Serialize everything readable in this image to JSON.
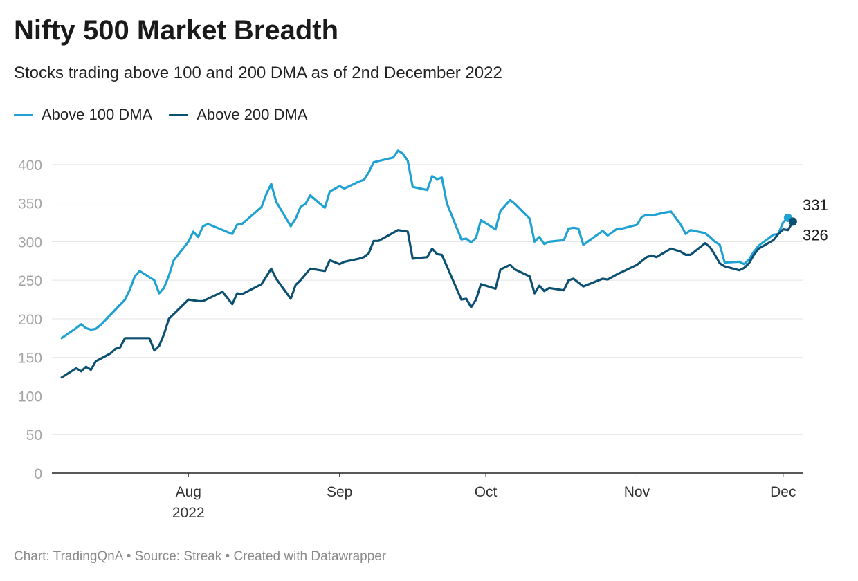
{
  "title": "Nifty 500 Market Breadth",
  "subtitle": "Stocks trading above 100 and 200 DMA as of 2nd December 2022",
  "footer": "Chart: TradingQnA • Source: Streak • Created with Datawrapper",
  "colors": {
    "above_100": "#1fa1d1",
    "above_200": "#0b4f71",
    "grid": "#e3e3e3",
    "axis": "#222222",
    "tick_text": "#a5a5a5"
  },
  "chart_data": {
    "type": "line",
    "title": "Nifty 500 Market Breadth",
    "subtitle": "Stocks trading above 100 and 200 DMA as of 2nd December 2022",
    "xlabel": "",
    "ylabel": "",
    "ylim": [
      0,
      425
    ],
    "yticks": [
      0,
      50,
      100,
      150,
      200,
      250,
      300,
      350,
      400
    ],
    "xlim": [
      "2022-07-04",
      "2022-12-05"
    ],
    "xticks": [
      {
        "date": "2022-08-01",
        "label": "Aug",
        "sublabel": "2022"
      },
      {
        "date": "2022-09-01",
        "label": "Sep",
        "sublabel": ""
      },
      {
        "date": "2022-10-01",
        "label": "Oct",
        "sublabel": ""
      },
      {
        "date": "2022-11-01",
        "label": "Nov",
        "sublabel": ""
      },
      {
        "date": "2022-12-01",
        "label": "Dec",
        "sublabel": ""
      }
    ],
    "grid": true,
    "legend_position": "top-left",
    "series": [
      {
        "name": "Above 100 DMA",
        "color": "#1fa1d1",
        "end_label": "331",
        "points": [
          [
            "2022-07-06",
            175
          ],
          [
            "2022-07-09",
            188
          ],
          [
            "2022-07-10",
            193
          ],
          [
            "2022-07-11",
            188
          ],
          [
            "2022-07-12",
            186
          ],
          [
            "2022-07-13",
            187
          ],
          [
            "2022-07-14",
            192
          ],
          [
            "2022-07-19",
            225
          ],
          [
            "2022-07-20",
            238
          ],
          [
            "2022-07-21",
            255
          ],
          [
            "2022-07-22",
            262
          ],
          [
            "2022-07-25",
            250
          ],
          [
            "2022-07-26",
            233
          ],
          [
            "2022-07-27",
            240
          ],
          [
            "2022-07-28",
            256
          ],
          [
            "2022-07-29",
            276
          ],
          [
            "2022-08-01",
            300
          ],
          [
            "2022-08-02",
            313
          ],
          [
            "2022-08-03",
            306
          ],
          [
            "2022-08-04",
            320
          ],
          [
            "2022-08-05",
            323
          ],
          [
            "2022-08-10",
            310
          ],
          [
            "2022-08-11",
            322
          ],
          [
            "2022-08-12",
            323
          ],
          [
            "2022-08-16",
            345
          ],
          [
            "2022-08-17",
            362
          ],
          [
            "2022-08-18",
            375
          ],
          [
            "2022-08-19",
            352
          ],
          [
            "2022-08-22",
            320
          ],
          [
            "2022-08-23",
            330
          ],
          [
            "2022-08-24",
            345
          ],
          [
            "2022-08-25",
            349
          ],
          [
            "2022-08-26",
            360
          ],
          [
            "2022-08-29",
            344
          ],
          [
            "2022-08-30",
            365
          ],
          [
            "2022-09-01",
            372
          ],
          [
            "2022-09-02",
            369
          ],
          [
            "2022-09-05",
            378
          ],
          [
            "2022-09-06",
            380
          ],
          [
            "2022-09-07",
            390
          ],
          [
            "2022-09-08",
            403
          ],
          [
            "2022-09-12",
            409
          ],
          [
            "2022-09-13",
            418
          ],
          [
            "2022-09-14",
            414
          ],
          [
            "2022-09-15",
            405
          ],
          [
            "2022-09-16",
            371
          ],
          [
            "2022-09-19",
            367
          ],
          [
            "2022-09-20",
            385
          ],
          [
            "2022-09-21",
            381
          ],
          [
            "2022-09-22",
            383
          ],
          [
            "2022-09-23",
            350
          ],
          [
            "2022-09-26",
            303
          ],
          [
            "2022-09-27",
            304
          ],
          [
            "2022-09-28",
            299
          ],
          [
            "2022-09-29",
            305
          ],
          [
            "2022-09-30",
            328
          ],
          [
            "2022-10-03",
            316
          ],
          [
            "2022-10-04",
            340
          ],
          [
            "2022-10-06",
            354
          ],
          [
            "2022-10-07",
            349
          ],
          [
            "2022-10-10",
            330
          ],
          [
            "2022-10-11",
            300
          ],
          [
            "2022-10-12",
            306
          ],
          [
            "2022-10-13",
            297
          ],
          [
            "2022-10-14",
            300
          ],
          [
            "2022-10-17",
            302
          ],
          [
            "2022-10-18",
            317
          ],
          [
            "2022-10-19",
            318
          ],
          [
            "2022-10-20",
            317
          ],
          [
            "2022-10-21",
            296
          ],
          [
            "2022-10-25",
            314
          ],
          [
            "2022-10-26",
            308
          ],
          [
            "2022-10-28",
            317
          ],
          [
            "2022-10-29",
            317
          ],
          [
            "2022-11-01",
            322
          ],
          [
            "2022-11-02",
            332
          ],
          [
            "2022-11-03",
            335
          ],
          [
            "2022-11-04",
            334
          ],
          [
            "2022-11-07",
            338
          ],
          [
            "2022-11-08",
            339
          ],
          [
            "2022-11-10",
            322
          ],
          [
            "2022-11-11",
            310
          ],
          [
            "2022-11-12",
            315
          ],
          [
            "2022-11-15",
            311
          ],
          [
            "2022-11-16",
            306
          ],
          [
            "2022-11-17",
            300
          ],
          [
            "2022-11-18",
            296
          ],
          [
            "2022-11-19",
            273
          ],
          [
            "2022-11-22",
            274
          ],
          [
            "2022-11-23",
            271
          ],
          [
            "2022-11-24",
            277
          ],
          [
            "2022-11-25",
            287
          ],
          [
            "2022-11-26",
            295
          ],
          [
            "2022-11-29",
            309
          ],
          [
            "2022-11-30",
            310
          ],
          [
            "2022-12-01",
            325
          ],
          [
            "2022-12-02",
            331
          ]
        ]
      },
      {
        "name": "Above 200 DMA",
        "color": "#0b4f71",
        "end_label": "326",
        "points": [
          [
            "2022-07-06",
            124
          ],
          [
            "2022-07-09",
            136
          ],
          [
            "2022-07-10",
            132
          ],
          [
            "2022-07-11",
            138
          ],
          [
            "2022-07-12",
            134
          ],
          [
            "2022-07-13",
            145
          ],
          [
            "2022-07-16",
            155
          ],
          [
            "2022-07-17",
            161
          ],
          [
            "2022-07-18",
            163
          ],
          [
            "2022-07-19",
            175
          ],
          [
            "2022-07-24",
            175
          ],
          [
            "2022-07-25",
            159
          ],
          [
            "2022-07-26",
            165
          ],
          [
            "2022-07-27",
            180
          ],
          [
            "2022-07-28",
            200
          ],
          [
            "2022-08-01",
            225
          ],
          [
            "2022-08-03",
            223
          ],
          [
            "2022-08-04",
            223
          ],
          [
            "2022-08-08",
            235
          ],
          [
            "2022-08-10",
            219
          ],
          [
            "2022-08-11",
            233
          ],
          [
            "2022-08-12",
            232
          ],
          [
            "2022-08-16",
            245
          ],
          [
            "2022-08-18",
            265
          ],
          [
            "2022-08-19",
            252
          ],
          [
            "2022-08-22",
            226
          ],
          [
            "2022-08-23",
            244
          ],
          [
            "2022-08-24",
            250
          ],
          [
            "2022-08-26",
            265
          ],
          [
            "2022-08-29",
            262
          ],
          [
            "2022-08-30",
            276
          ],
          [
            "2022-09-01",
            271
          ],
          [
            "2022-09-02",
            274
          ],
          [
            "2022-09-05",
            278
          ],
          [
            "2022-09-06",
            280
          ],
          [
            "2022-09-07",
            285
          ],
          [
            "2022-09-08",
            301
          ],
          [
            "2022-09-09",
            301
          ],
          [
            "2022-09-13",
            315
          ],
          [
            "2022-09-15",
            313
          ],
          [
            "2022-09-16",
            278
          ],
          [
            "2022-09-19",
            280
          ],
          [
            "2022-09-20",
            291
          ],
          [
            "2022-09-21",
            284
          ],
          [
            "2022-09-22",
            283
          ],
          [
            "2022-09-26",
            225
          ],
          [
            "2022-09-27",
            226
          ],
          [
            "2022-09-28",
            215
          ],
          [
            "2022-09-29",
            225
          ],
          [
            "2022-09-30",
            245
          ],
          [
            "2022-10-03",
            239
          ],
          [
            "2022-10-04",
            264
          ],
          [
            "2022-10-06",
            270
          ],
          [
            "2022-10-07",
            264
          ],
          [
            "2022-10-10",
            255
          ],
          [
            "2022-10-11",
            233
          ],
          [
            "2022-10-12",
            243
          ],
          [
            "2022-10-13",
            236
          ],
          [
            "2022-10-14",
            240
          ],
          [
            "2022-10-17",
            237
          ],
          [
            "2022-10-18",
            250
          ],
          [
            "2022-10-19",
            252
          ],
          [
            "2022-10-21",
            242
          ],
          [
            "2022-10-25",
            252
          ],
          [
            "2022-10-26",
            251
          ],
          [
            "2022-10-28",
            258
          ],
          [
            "2022-11-01",
            270
          ],
          [
            "2022-11-03",
            280
          ],
          [
            "2022-11-04",
            282
          ],
          [
            "2022-11-05",
            280
          ],
          [
            "2022-11-08",
            291
          ],
          [
            "2022-11-10",
            287
          ],
          [
            "2022-11-11",
            283
          ],
          [
            "2022-11-12",
            283
          ],
          [
            "2022-11-15",
            298
          ],
          [
            "2022-11-16",
            293
          ],
          [
            "2022-11-17",
            283
          ],
          [
            "2022-11-18",
            272
          ],
          [
            "2022-11-19",
            268
          ],
          [
            "2022-11-22",
            263
          ],
          [
            "2022-11-23",
            266
          ],
          [
            "2022-11-24",
            272
          ],
          [
            "2022-11-25",
            283
          ],
          [
            "2022-11-26",
            291
          ],
          [
            "2022-11-29",
            302
          ],
          [
            "2022-11-30",
            310
          ],
          [
            "2022-12-01",
            316
          ],
          [
            "2022-12-02",
            315
          ],
          [
            "2022-12-03",
            326
          ]
        ]
      }
    ]
  }
}
